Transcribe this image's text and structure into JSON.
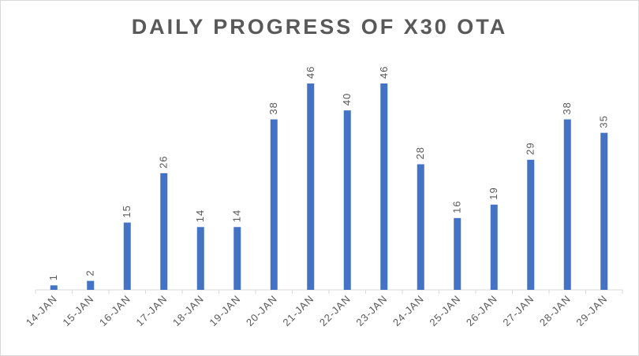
{
  "chart_data": {
    "type": "bar",
    "title": "DAILY PROGRESS OF X30 OTA",
    "categories": [
      "14-JAN",
      "15-JAN",
      "16-JAN",
      "17-JAN",
      "18-JAN",
      "19-JAN",
      "20-JAN",
      "21-JAN",
      "22-JAN",
      "23-JAN",
      "24-JAN",
      "25-JAN",
      "26-JAN",
      "27-JAN",
      "28-JAN",
      "29-JAN"
    ],
    "values": [
      1,
      2,
      15,
      26,
      14,
      14,
      38,
      46,
      40,
      46,
      28,
      16,
      19,
      29,
      38,
      35
    ],
    "ylim": [
      0,
      46
    ],
    "data_labels": true,
    "grid": false,
    "legend": "none",
    "bar_color": "#4472c4"
  }
}
